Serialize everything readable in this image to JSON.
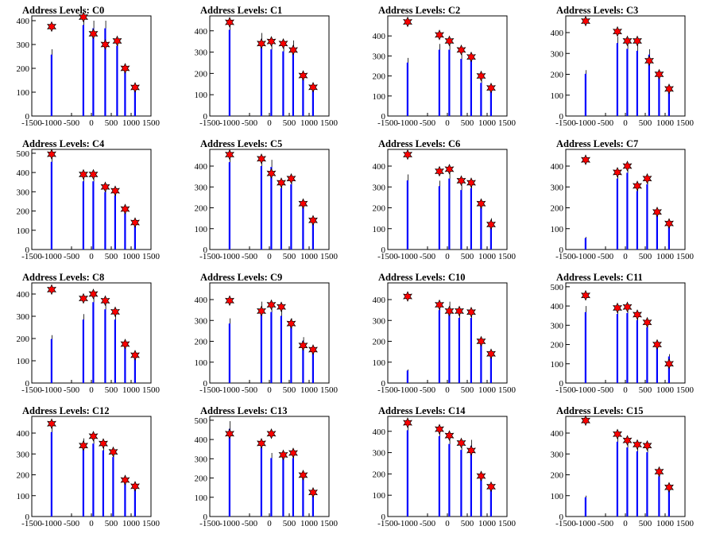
{
  "chart_data": [
    {
      "type": "bar",
      "title": "Address Levels: C0",
      "ylim": [
        0,
        420
      ],
      "yticks": [
        0,
        100,
        200,
        300,
        400
      ],
      "xlim": [
        -1500,
        1500
      ],
      "xticks": [
        -1500,
        -1000,
        -500,
        0,
        500,
        1000,
        1500
      ],
      "peaks": [
        {
          "x": -1000,
          "y": 375,
          "bar": 280
        },
        {
          "x": -200,
          "y": 415,
          "bar": 415
        },
        {
          "x": 50,
          "y": 345,
          "bar": 400
        },
        {
          "x": 350,
          "y": 300,
          "bar": 400
        },
        {
          "x": 650,
          "y": 315,
          "bar": 320
        },
        {
          "x": 850,
          "y": 200,
          "bar": 200
        },
        {
          "x": 1100,
          "y": 120,
          "bar": 120
        }
      ]
    },
    {
      "type": "bar",
      "title": "Address Levels: C1",
      "ylim": [
        0,
        470
      ],
      "yticks": [
        0,
        100,
        200,
        300,
        400
      ],
      "xlim": [
        -1500,
        1500
      ],
      "xticks": [
        -1500,
        -1000,
        -500,
        0,
        500,
        1000,
        1500
      ],
      "peaks": [
        {
          "x": -1000,
          "y": 440,
          "bar": 440
        },
        {
          "x": -200,
          "y": 340,
          "bar": 390
        },
        {
          "x": 50,
          "y": 350,
          "bar": 340
        },
        {
          "x": 350,
          "y": 340,
          "bar": 330
        },
        {
          "x": 600,
          "y": 310,
          "bar": 355
        },
        {
          "x": 850,
          "y": 190,
          "bar": 190
        },
        {
          "x": 1100,
          "y": 135,
          "bar": 140
        }
      ]
    },
    {
      "type": "bar",
      "title": "Address Levels: C2",
      "ylim": [
        0,
        500
      ],
      "yticks": [
        0,
        100,
        200,
        300,
        400
      ],
      "xlim": [
        -1500,
        1500
      ],
      "xticks": [
        -1500,
        -1000,
        -500,
        0,
        500,
        1000,
        1500
      ],
      "peaks": [
        {
          "x": -1000,
          "y": 470,
          "bar": 290
        },
        {
          "x": -200,
          "y": 405,
          "bar": 360
        },
        {
          "x": 50,
          "y": 375,
          "bar": 360
        },
        {
          "x": 350,
          "y": 330,
          "bar": 310
        },
        {
          "x": 600,
          "y": 295,
          "bar": 310
        },
        {
          "x": 850,
          "y": 200,
          "bar": 180
        },
        {
          "x": 1100,
          "y": 140,
          "bar": 140
        }
      ]
    },
    {
      "type": "bar",
      "title": "Address Levels: C3",
      "ylim": [
        0,
        480
      ],
      "yticks": [
        0,
        100,
        200,
        300,
        400
      ],
      "xlim": [
        -1500,
        1500
      ],
      "xticks": [
        -1500,
        -1000,
        -500,
        0,
        500,
        1000,
        1500
      ],
      "peaks": [
        {
          "x": -1000,
          "y": 455,
          "bar": 220
        },
        {
          "x": -200,
          "y": 405,
          "bar": 380
        },
        {
          "x": 50,
          "y": 360,
          "bar": 350
        },
        {
          "x": 300,
          "y": 360,
          "bar": 340
        },
        {
          "x": 600,
          "y": 265,
          "bar": 320
        },
        {
          "x": 850,
          "y": 200,
          "bar": 200
        },
        {
          "x": 1100,
          "y": 130,
          "bar": 130
        }
      ]
    },
    {
      "type": "bar",
      "title": "Address Levels: C4",
      "ylim": [
        0,
        520
      ],
      "yticks": [
        0,
        100,
        200,
        300,
        400,
        500
      ],
      "xlim": [
        -1500,
        1500
      ],
      "xticks": [
        -1500,
        -1000,
        -500,
        0,
        500,
        1000,
        1500
      ],
      "peaks": [
        {
          "x": -1000,
          "y": 495,
          "bar": 495
        },
        {
          "x": -200,
          "y": 390,
          "bar": 385
        },
        {
          "x": 50,
          "y": 390,
          "bar": 385
        },
        {
          "x": 350,
          "y": 325,
          "bar": 325
        },
        {
          "x": 600,
          "y": 305,
          "bar": 305
        },
        {
          "x": 850,
          "y": 210,
          "bar": 205
        },
        {
          "x": 1100,
          "y": 140,
          "bar": 140
        }
      ]
    },
    {
      "type": "bar",
      "title": "Address Levels: C5",
      "ylim": [
        0,
        480
      ],
      "yticks": [
        0,
        100,
        200,
        300,
        400
      ],
      "xlim": [
        -1500,
        1500
      ],
      "xticks": [
        -1500,
        -1000,
        -500,
        0,
        500,
        1000,
        1500
      ],
      "peaks": [
        {
          "x": -1000,
          "y": 455,
          "bar": 455
        },
        {
          "x": -200,
          "y": 435,
          "bar": 435
        },
        {
          "x": 50,
          "y": 365,
          "bar": 430
        },
        {
          "x": 300,
          "y": 320,
          "bar": 320
        },
        {
          "x": 550,
          "y": 340,
          "bar": 340
        },
        {
          "x": 850,
          "y": 220,
          "bar": 220
        },
        {
          "x": 1100,
          "y": 140,
          "bar": 140
        }
      ]
    },
    {
      "type": "bar",
      "title": "Address Levels: C6",
      "ylim": [
        0,
        480
      ],
      "yticks": [
        0,
        100,
        200,
        300,
        400
      ],
      "xlim": [
        -1500,
        1500
      ],
      "xticks": [
        -1500,
        -1000,
        -500,
        0,
        500,
        1000,
        1500
      ],
      "peaks": [
        {
          "x": -1000,
          "y": 455,
          "bar": 360
        },
        {
          "x": -200,
          "y": 375,
          "bar": 330
        },
        {
          "x": 50,
          "y": 385,
          "bar": 370
        },
        {
          "x": 350,
          "y": 330,
          "bar": 310
        },
        {
          "x": 600,
          "y": 320,
          "bar": 320
        },
        {
          "x": 850,
          "y": 220,
          "bar": 220
        },
        {
          "x": 1100,
          "y": 120,
          "bar": 150
        }
      ]
    },
    {
      "type": "bar",
      "title": "Address Levels: C7",
      "ylim": [
        0,
        480
      ],
      "yticks": [
        0,
        100,
        200,
        300,
        400
      ],
      "xlim": [
        -1500,
        1500
      ],
      "xticks": [
        -1500,
        -1000,
        -500,
        0,
        500,
        1000,
        1500
      ],
      "peaks": [
        {
          "x": -1000,
          "y": 430,
          "bar": 60
        },
        {
          "x": -200,
          "y": 370,
          "bar": 370
        },
        {
          "x": 50,
          "y": 400,
          "bar": 400
        },
        {
          "x": 300,
          "y": 305,
          "bar": 305
        },
        {
          "x": 550,
          "y": 340,
          "bar": 340
        },
        {
          "x": 800,
          "y": 180,
          "bar": 180
        },
        {
          "x": 1100,
          "y": 125,
          "bar": 125
        }
      ]
    },
    {
      "type": "bar",
      "title": "Address Levels: C8",
      "ylim": [
        0,
        450
      ],
      "yticks": [
        0,
        100,
        200,
        300,
        400
      ],
      "xlim": [
        -1500,
        1500
      ],
      "xticks": [
        -1500,
        -1000,
        -500,
        0,
        500,
        1000,
        1500
      ],
      "peaks": [
        {
          "x": -1000,
          "y": 420,
          "bar": 215
        },
        {
          "x": -200,
          "y": 380,
          "bar": 310
        },
        {
          "x": 50,
          "y": 400,
          "bar": 395
        },
        {
          "x": 350,
          "y": 370,
          "bar": 360
        },
        {
          "x": 600,
          "y": 320,
          "bar": 310
        },
        {
          "x": 850,
          "y": 175,
          "bar": 175
        },
        {
          "x": 1100,
          "y": 125,
          "bar": 125
        }
      ]
    },
    {
      "type": "bar",
      "title": "Address Levels: C9",
      "ylim": [
        0,
        480
      ],
      "yticks": [
        0,
        100,
        200,
        300,
        400
      ],
      "xlim": [
        -1500,
        1500
      ],
      "xticks": [
        -1500,
        -1000,
        -500,
        0,
        500,
        1000,
        1500
      ],
      "peaks": [
        {
          "x": -1000,
          "y": 395,
          "bar": 310
        },
        {
          "x": -200,
          "y": 345,
          "bar": 390
        },
        {
          "x": 50,
          "y": 375,
          "bar": 370
        },
        {
          "x": 300,
          "y": 365,
          "bar": 350
        },
        {
          "x": 550,
          "y": 285,
          "bar": 310
        },
        {
          "x": 850,
          "y": 180,
          "bar": 220
        },
        {
          "x": 1100,
          "y": 160,
          "bar": 160
        }
      ]
    },
    {
      "type": "bar",
      "title": "Address Levels: C10",
      "ylim": [
        0,
        480
      ],
      "yticks": [
        0,
        100,
        200,
        300,
        400
      ],
      "xlim": [
        -1500,
        1500
      ],
      "xticks": [
        -1500,
        -1000,
        -500,
        0,
        500,
        1000,
        1500
      ],
      "peaks": [
        {
          "x": -1000,
          "y": 415,
          "bar": 65
        },
        {
          "x": -200,
          "y": 375,
          "bar": 380
        },
        {
          "x": 50,
          "y": 345,
          "bar": 390
        },
        {
          "x": 300,
          "y": 345,
          "bar": 340
        },
        {
          "x": 600,
          "y": 340,
          "bar": 340
        },
        {
          "x": 850,
          "y": 200,
          "bar": 200
        },
        {
          "x": 1100,
          "y": 140,
          "bar": 140
        }
      ]
    },
    {
      "type": "bar",
      "title": "Address Levels: C11",
      "ylim": [
        0,
        520
      ],
      "yticks": [
        0,
        100,
        200,
        300,
        400,
        500
      ],
      "xlim": [
        -1500,
        1500
      ],
      "xticks": [
        -1500,
        -1000,
        -500,
        0,
        500,
        1000,
        1500
      ],
      "peaks": [
        {
          "x": -1000,
          "y": 455,
          "bar": 400
        },
        {
          "x": -200,
          "y": 390,
          "bar": 390
        },
        {
          "x": 50,
          "y": 395,
          "bar": 395
        },
        {
          "x": 300,
          "y": 355,
          "bar": 355
        },
        {
          "x": 550,
          "y": 315,
          "bar": 315
        },
        {
          "x": 800,
          "y": 200,
          "bar": 200
        },
        {
          "x": 1100,
          "y": 100,
          "bar": 150
        }
      ]
    },
    {
      "type": "bar",
      "title": "Address Levels: C12",
      "ylim": [
        0,
        480
      ],
      "yticks": [
        0,
        100,
        200,
        300,
        400
      ],
      "xlim": [
        -1500,
        1500
      ],
      "xticks": [
        -1500,
        -1000,
        -500,
        0,
        500,
        1000,
        1500
      ],
      "peaks": [
        {
          "x": -1000,
          "y": 445,
          "bar": 440
        },
        {
          "x": -200,
          "y": 340,
          "bar": 375
        },
        {
          "x": 50,
          "y": 385,
          "bar": 380
        },
        {
          "x": 300,
          "y": 350,
          "bar": 345
        },
        {
          "x": 550,
          "y": 310,
          "bar": 310
        },
        {
          "x": 850,
          "y": 175,
          "bar": 190
        },
        {
          "x": 1100,
          "y": 145,
          "bar": 145
        }
      ]
    },
    {
      "type": "bar",
      "title": "Address Levels: C13",
      "ylim": [
        0,
        520
      ],
      "yticks": [
        0,
        100,
        200,
        300,
        400,
        500
      ],
      "xlim": [
        -1500,
        1500
      ],
      "xticks": [
        -1500,
        -1000,
        -500,
        0,
        500,
        1000,
        1500
      ],
      "peaks": [
        {
          "x": -1000,
          "y": 430,
          "bar": 495
        },
        {
          "x": -200,
          "y": 380,
          "bar": 390
        },
        {
          "x": 50,
          "y": 430,
          "bar": 330
        },
        {
          "x": 350,
          "y": 320,
          "bar": 330
        },
        {
          "x": 600,
          "y": 330,
          "bar": 330
        },
        {
          "x": 850,
          "y": 215,
          "bar": 215
        },
        {
          "x": 1100,
          "y": 125,
          "bar": 140
        }
      ]
    },
    {
      "type": "bar",
      "title": "Address Levels: C14",
      "ylim": [
        0,
        470
      ],
      "yticks": [
        0,
        100,
        200,
        300,
        400
      ],
      "xlim": [
        -1500,
        1500
      ],
      "xticks": [
        -1500,
        -1000,
        -500,
        0,
        500,
        1000,
        1500
      ],
      "peaks": [
        {
          "x": -1000,
          "y": 440,
          "bar": 440
        },
        {
          "x": -200,
          "y": 410,
          "bar": 410
        },
        {
          "x": 50,
          "y": 380,
          "bar": 370
        },
        {
          "x": 350,
          "y": 345,
          "bar": 340
        },
        {
          "x": 600,
          "y": 310,
          "bar": 360
        },
        {
          "x": 850,
          "y": 190,
          "bar": 190
        },
        {
          "x": 1100,
          "y": 140,
          "bar": 140
        }
      ]
    },
    {
      "type": "bar",
      "title": "Address Levels: C15",
      "ylim": [
        0,
        480
      ],
      "yticks": [
        0,
        100,
        200,
        300,
        400
      ],
      "xlim": [
        -1500,
        1500
      ],
      "xticks": [
        -1500,
        -1000,
        -500,
        0,
        500,
        1000,
        1500
      ],
      "peaks": [
        {
          "x": -1000,
          "y": 460,
          "bar": 100
        },
        {
          "x": -200,
          "y": 395,
          "bar": 390
        },
        {
          "x": 50,
          "y": 365,
          "bar": 360
        },
        {
          "x": 300,
          "y": 345,
          "bar": 340
        },
        {
          "x": 550,
          "y": 340,
          "bar": 335
        },
        {
          "x": 850,
          "y": 215,
          "bar": 210
        },
        {
          "x": 1100,
          "y": 140,
          "bar": 140
        }
      ]
    }
  ],
  "colors": {
    "bar": "#0000ff",
    "spike": "#000000",
    "marker_fill": "#ff0000",
    "marker_stroke": "#000000",
    "axis": "#000000",
    "background": "#ffffff"
  },
  "marker_shape": "star"
}
